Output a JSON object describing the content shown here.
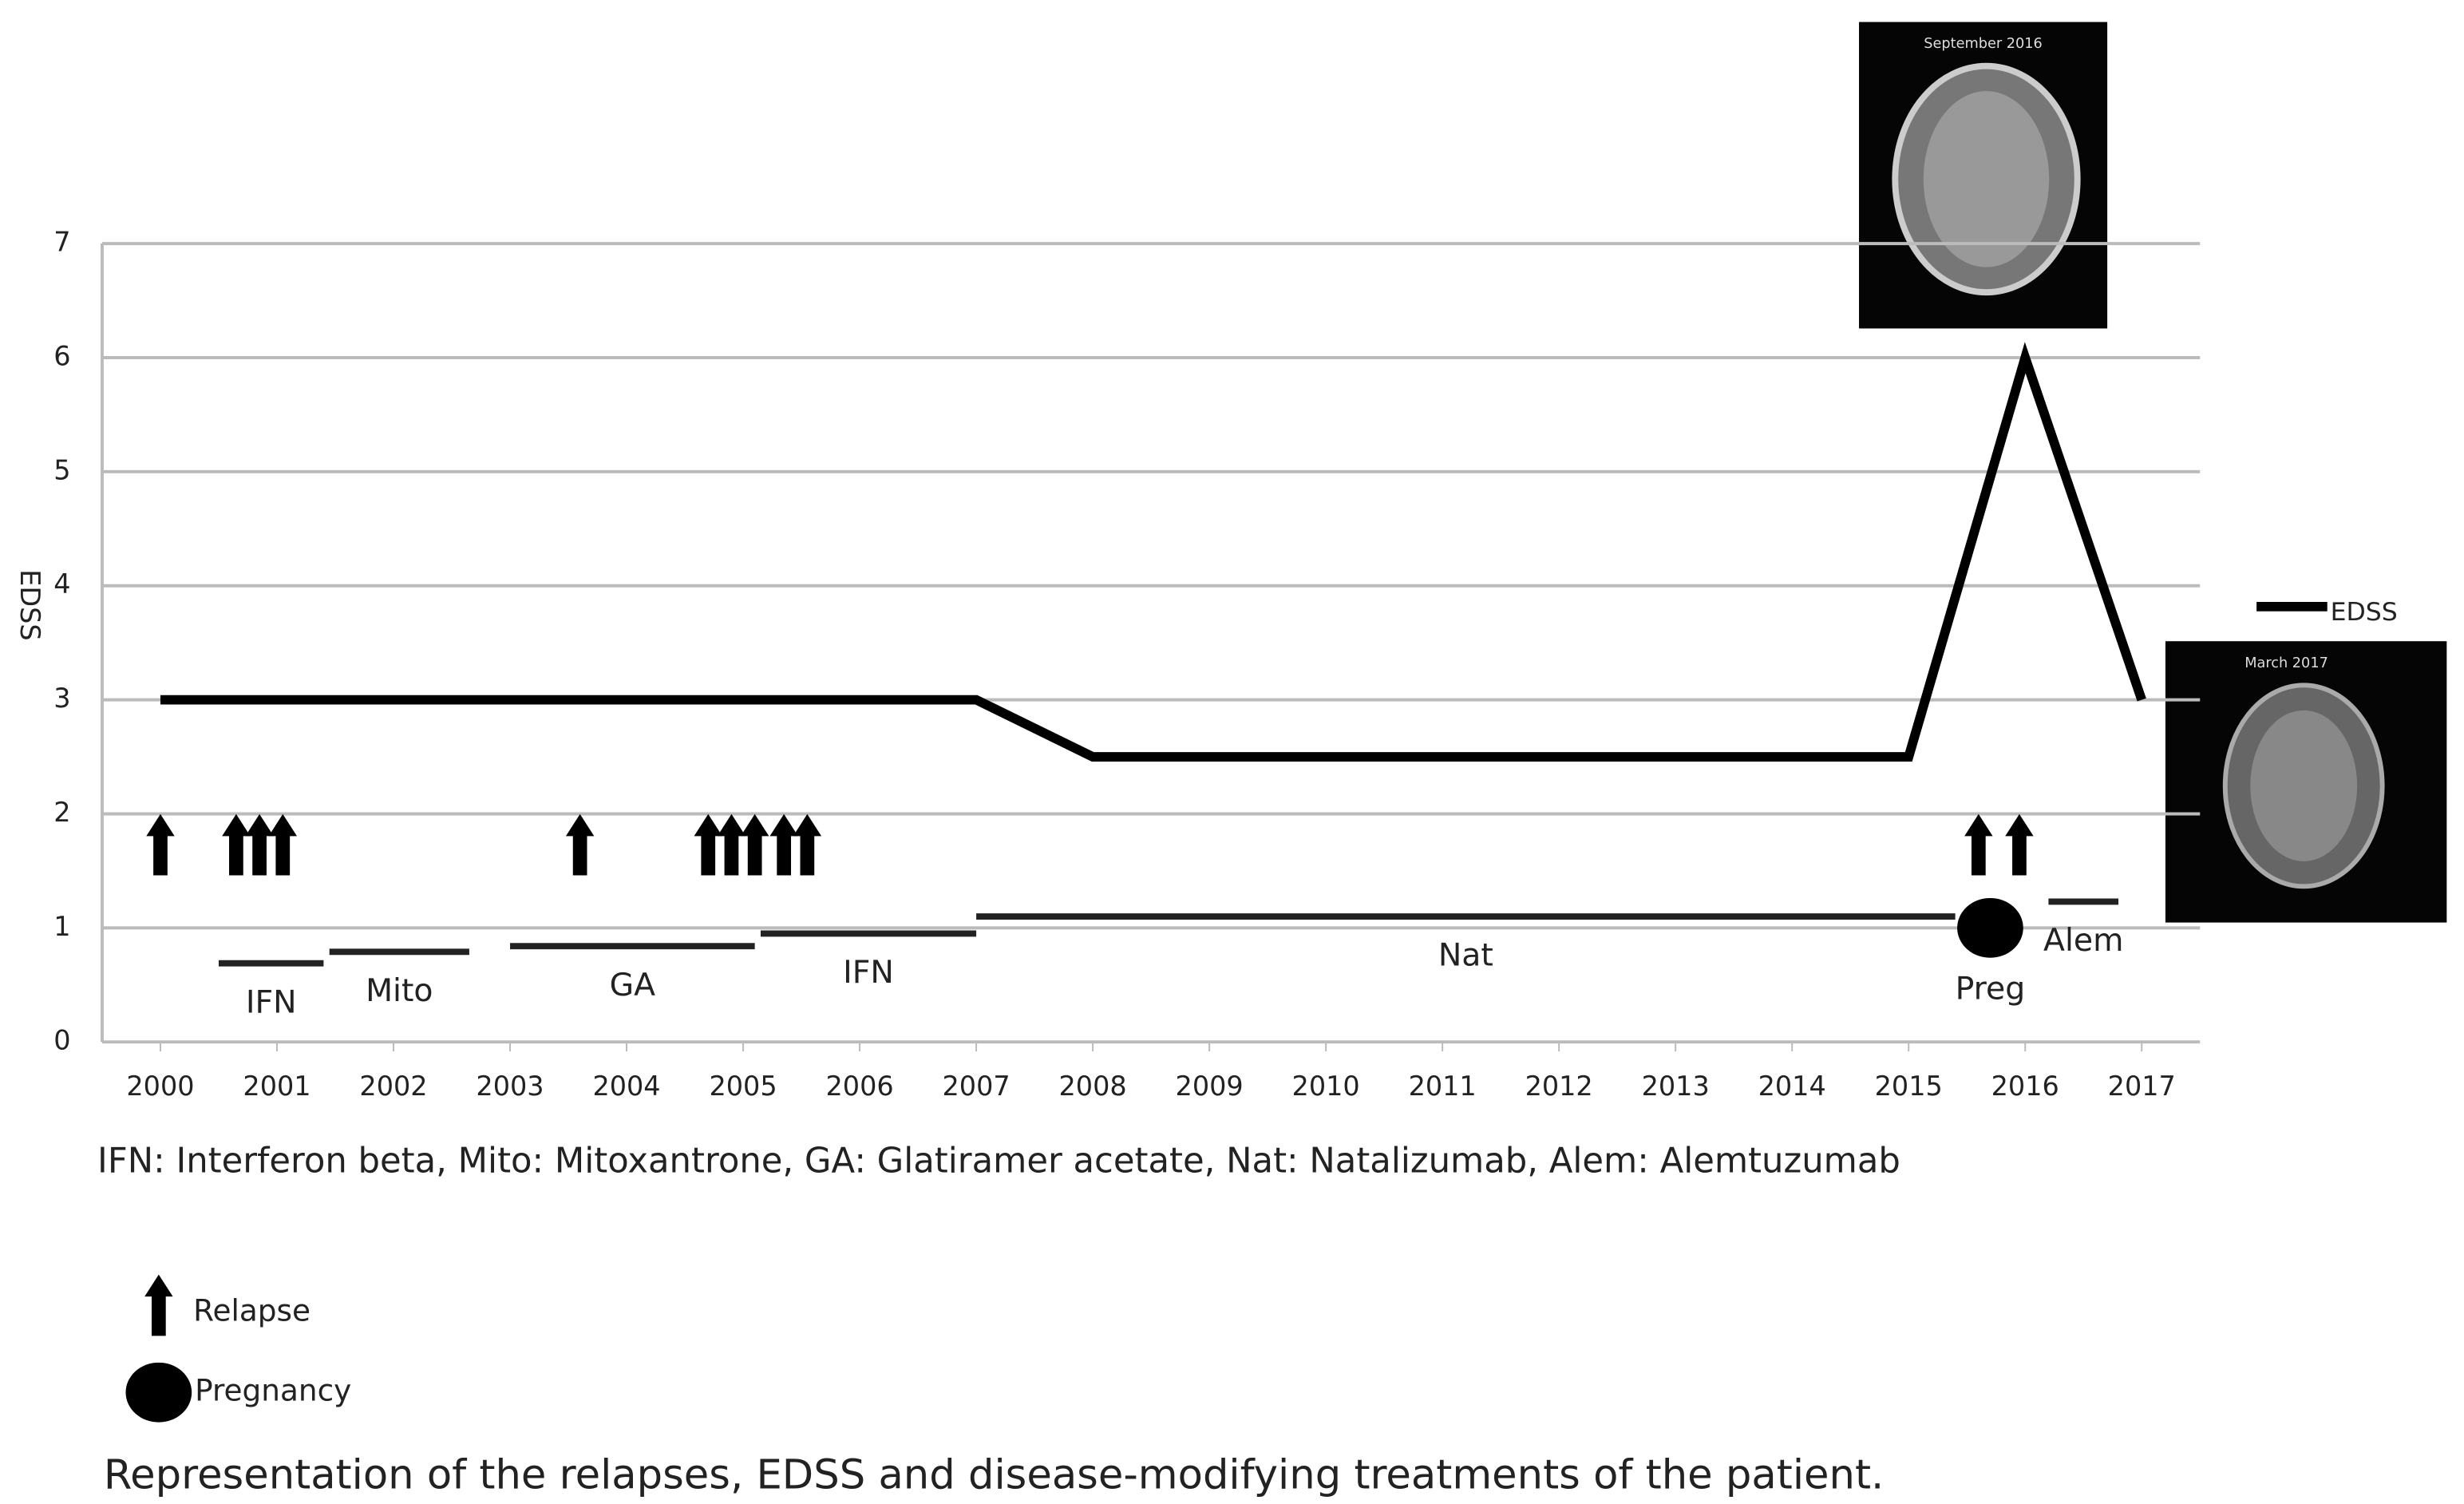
{
  "chart_data": {
    "type": "line",
    "y_label": "EDSS",
    "x": [
      2000,
      2007,
      2008,
      2015,
      2016,
      2017
    ],
    "series": [
      {
        "name": "EDSS",
        "color": "#000000",
        "values": [
          3,
          3,
          2.5,
          2.5,
          6,
          3
        ]
      }
    ],
    "xlim": [
      1999.5,
      2017.5
    ],
    "xticks": [
      2000,
      2001,
      2002,
      2003,
      2004,
      2005,
      2006,
      2007,
      2008,
      2009,
      2010,
      2011,
      2012,
      2013,
      2014,
      2015,
      2016,
      2017
    ],
    "ylim": [
      0,
      7
    ],
    "yticks": [
      0,
      1,
      2,
      3,
      4,
      5,
      6,
      7
    ],
    "grid": true,
    "legend": "right",
    "relapses": {
      "legend": "Relapse",
      "x": [
        2000.0,
        2000.65,
        2000.85,
        2001.05,
        2003.6,
        2004.7,
        2004.9,
        2005.1,
        2005.35,
        2005.55,
        2015.6,
        2015.95
      ]
    },
    "pregnancy": {
      "label": "Preg",
      "legend": "Pregnancy",
      "x": [
        2015.7
      ],
      "y": [
        1.0
      ]
    },
    "treatments": [
      {
        "label": "IFN",
        "start": 2000.5,
        "end": 2001.4,
        "level": 0.69
      },
      {
        "label": "Mito",
        "start": 2001.45,
        "end": 2002.65,
        "level": 0.79
      },
      {
        "label": "GA",
        "start": 2003.0,
        "end": 2005.1,
        "level": 0.84
      },
      {
        "label": "IFN",
        "start": 2005.15,
        "end": 2007.0,
        "level": 0.95
      },
      {
        "label": "Nat",
        "start": 2007.0,
        "end": 2015.4,
        "level": 1.1
      },
      {
        "label": "Alem",
        "start": 2016.2,
        "end": 2016.8,
        "level": 1.23
      }
    ],
    "images": [
      {
        "caption": "September 2016"
      },
      {
        "caption": "March 2017"
      }
    ],
    "abbreviations": "IFN: Interferon beta, Mito: Mitoxantrone, GA: Glatiramer acetate, Nat: Natalizumab, Alem: Alemtuzumab",
    "caption": "Representation of the relapses, EDSS and disease-modifying treatments of the patient."
  }
}
